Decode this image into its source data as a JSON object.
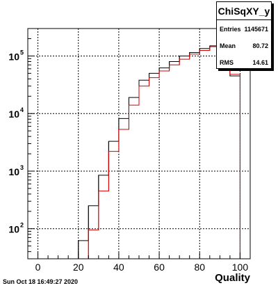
{
  "chart_data": {
    "type": "line",
    "title": "ChiSqXY_y",
    "xlabel": "Quality",
    "ylabel": "",
    "xlim": [
      -5,
      105
    ],
    "ylim": [
      30,
      300000
    ],
    "log_y": true,
    "grid": true,
    "x_ticks": [
      0,
      20,
      40,
      60,
      80,
      100
    ],
    "y_ticks": [
      {
        "value": 100,
        "label": "10",
        "exp": "2"
      },
      {
        "value": 1000,
        "label": "10",
        "exp": "3"
      },
      {
        "value": 10000,
        "label": "10",
        "exp": "4"
      },
      {
        "value": 100000,
        "label": "10",
        "exp": "5"
      }
    ],
    "bin_edges": [
      -5,
      0,
      5,
      10,
      15,
      20,
      25,
      30,
      35,
      40,
      45,
      50,
      55,
      60,
      65,
      70,
      75,
      80,
      85,
      90,
      95,
      100,
      105
    ],
    "series": [
      {
        "color": "#000000",
        "values": [
          30,
          30,
          30,
          30,
          30,
          62,
          250,
          850,
          3300,
          8200,
          19000,
          38000,
          50000,
          62000,
          80000,
          100000,
          115000,
          135000,
          150000,
          140000,
          45000,
          30
        ]
      },
      {
        "color": "#d40000",
        "values": [
          30,
          30,
          30,
          30,
          30,
          30,
          95,
          450,
          2200,
          5300,
          14000,
          30000,
          42000,
          55000,
          70000,
          88000,
          108000,
          125000,
          145000,
          140000,
          48000,
          30
        ]
      }
    ],
    "stats": {
      "title": "ChiSqXY_y",
      "entries_label": "Entries",
      "entries_value": "1145671",
      "mean_label": "Mean",
      "mean_value": "80.72",
      "rms_label": "RMS",
      "rms_value": "14.61"
    }
  },
  "footer": {
    "date": "Sun Oct 18 16:49:27 2020"
  }
}
